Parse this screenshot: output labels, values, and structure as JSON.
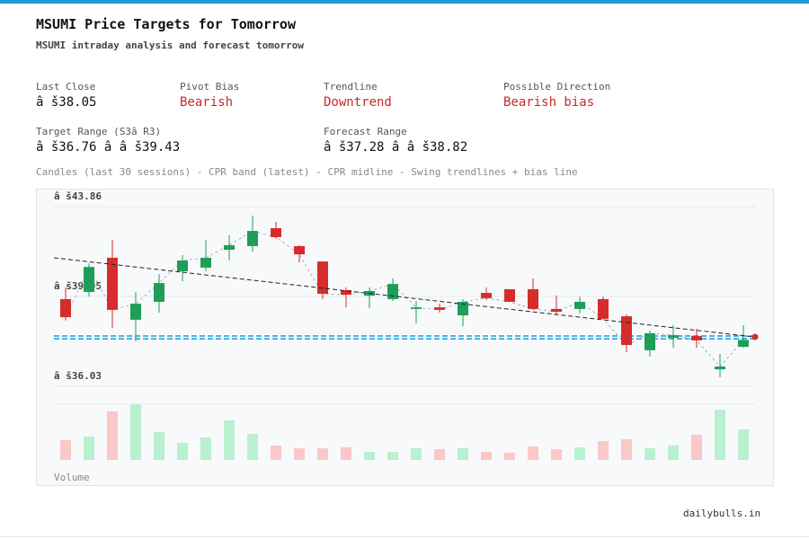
{
  "header": {
    "title": "MSUMI Price Targets for Tomorrow",
    "subtitle": "MSUMI intraday analysis and forecast tomorrow"
  },
  "stats": [
    {
      "label": "Last Close",
      "value": "â š38.05",
      "color": "#111111"
    },
    {
      "label": "Pivot Bias",
      "value": "Bearish",
      "color": "#c62828"
    },
    {
      "label": "Trendline",
      "value": "Downtrend",
      "color": "#c62828"
    },
    {
      "label": "Possible Direction",
      "value": "Bearish bias",
      "color": "#c62828"
    },
    {
      "label": "Target Range (S3â  R3)",
      "value": "â š36.76 â   â š39.43",
      "color": "#111111"
    },
    {
      "label": "Forecast Range",
      "value": "â š37.28 â   â š38.82",
      "color": "#111111"
    }
  ],
  "chart_data": {
    "type": "candlestick",
    "caption": "Candles (last 30 sessions) - CPR band (latest) - CPR midline - Swing trendlines + bias line",
    "ylim": [
      36.03,
      43.86
    ],
    "yticks": [
      {
        "value": 43.86,
        "label": "â š43.86"
      },
      {
        "value": 39.95,
        "label": "â š39.95"
      },
      {
        "value": 36.03,
        "label": "â š36.03"
      }
    ],
    "open": [
      39.83,
      40.14,
      41.63,
      38.93,
      39.71,
      41.04,
      41.2,
      41.98,
      42.14,
      42.92,
      42.14,
      41.47,
      40.22,
      39.98,
      39.83,
      39.4,
      39.47,
      39.12,
      40.1,
      40.26,
      40.26,
      39.4,
      39.4,
      39.83,
      39.08,
      37.6,
      38.14,
      38.22,
      36.77,
      37.75
    ],
    "high": [
      40.34,
      41.39,
      42.41,
      40.14,
      40.92,
      41.75,
      42.41,
      42.61,
      43.47,
      43.2,
      42.18,
      41.47,
      40.34,
      40.34,
      40.73,
      39.75,
      39.63,
      39.83,
      40.34,
      40.26,
      40.73,
      39.98,
      39.94,
      39.94,
      39.16,
      38.46,
      38.69,
      38.54,
      37.44,
      38.69
    ],
    "low": [
      38.9,
      39.94,
      38.57,
      37.99,
      39.24,
      40.61,
      41.04,
      41.51,
      41.9,
      42.45,
      41.43,
      39.83,
      39.47,
      39.43,
      39.75,
      38.77,
      39.24,
      38.65,
      39.79,
      39.71,
      39.36,
      39.16,
      39.2,
      38.93,
      37.52,
      37.32,
      37.71,
      37.71,
      36.42,
      37.71
    ],
    "close": [
      39.04,
      41.23,
      39.36,
      39.63,
      40.53,
      41.51,
      41.63,
      42.18,
      42.8,
      42.53,
      41.78,
      40.06,
      40.02,
      40.18,
      40.49,
      39.47,
      39.36,
      39.71,
      39.87,
      39.71,
      39.4,
      39.28,
      39.71,
      38.97,
      37.83,
      38.34,
      38.26,
      38.03,
      36.89,
      38.05
    ],
    "up_color": "#1e9e57",
    "down_color": "#d62c2c",
    "volume": [
      22,
      26,
      54,
      62,
      31,
      19,
      25,
      44,
      29,
      16,
      13,
      13,
      14,
      9,
      9,
      13,
      12,
      13,
      9,
      8,
      15,
      12,
      14,
      21,
      23,
      13,
      16,
      28,
      56,
      34
    ],
    "volume_up_color": "#b9f0cf",
    "volume_down_color": "#fbc7c7",
    "volume_label": "Volume",
    "cpr": [
      38.22,
      38.1
    ],
    "cpr_color": "#1f9ad6",
    "trendline": [
      41.63,
      38.18
    ],
    "bias_point": 38.18,
    "grid": true
  },
  "footer": "dailybulls.in"
}
